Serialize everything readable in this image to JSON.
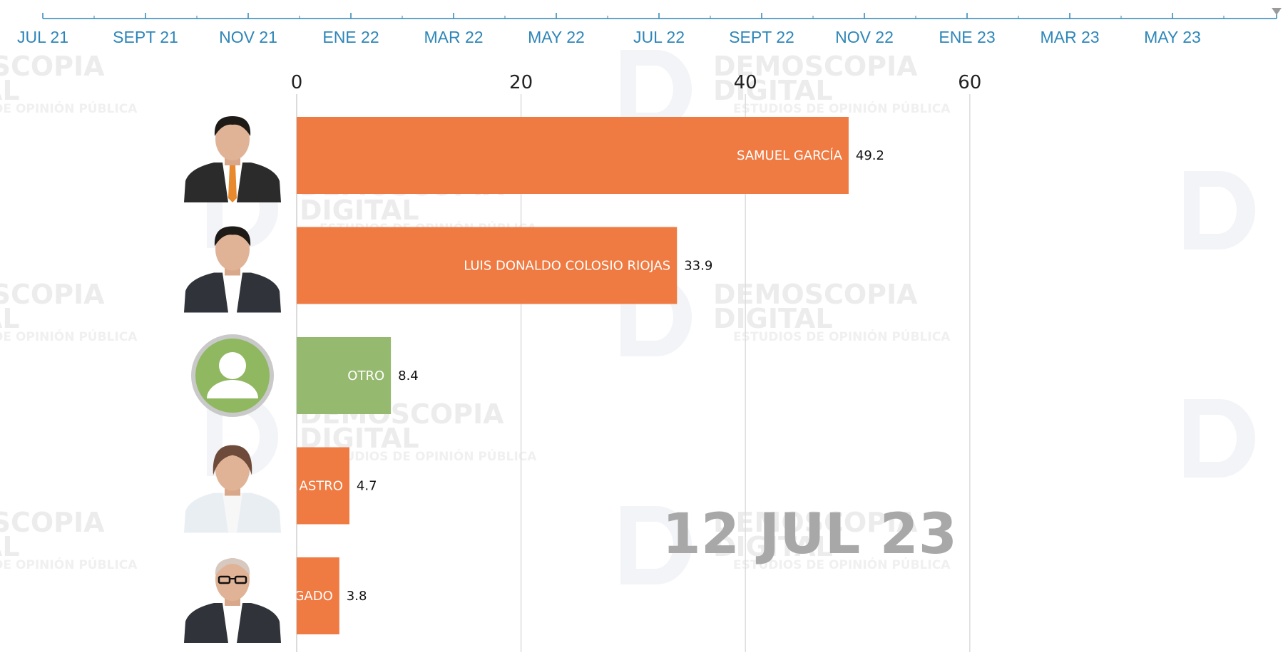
{
  "timeline": {
    "labels": [
      "JUL 21",
      "SEPT 21",
      "NOV 21",
      "ENE 22",
      "MAR 22",
      "MAY 22",
      "JUL 22",
      "SEPT 22",
      "NOV 22",
      "ENE 23",
      "MAR 23",
      "MAY 23"
    ],
    "color": "#2e86b8"
  },
  "watermark": {
    "line1": "DEMOSCOPIA",
    "line2": "DIGITAL",
    "line3": "ESTUDIOS DE OPINIÓN PÚBLICA"
  },
  "current_date": "12 JUL 23",
  "colors": {
    "orange": "#ef7a42",
    "green": "#95b96e",
    "gridline": "#dddddd",
    "date": "#a8a8a8"
  },
  "chart_data": {
    "type": "bar",
    "orientation": "horizontal",
    "xlim": [
      0,
      80
    ],
    "x_ticks": [
      0,
      20,
      40,
      60
    ],
    "grid": true,
    "categories": [
      "SAMUEL GARCÍA",
      "LUIS DONALDO COLOSIO RIOJAS",
      "OTRO",
      "ASTRO",
      "GADO"
    ],
    "values": [
      49.2,
      33.9,
      8.4,
      4.7,
      3.8
    ],
    "value_labels": [
      "49.2",
      "33.9",
      "8.4",
      "4.7",
      "3.8"
    ],
    "bar_colors": [
      "#ef7a42",
      "#ef7a42",
      "#95b96e",
      "#ef7a42",
      "#ef7a42"
    ],
    "icons": [
      "man-portrait-icon",
      "man-portrait-icon",
      "generic-person-icon",
      "woman-portrait-icon",
      "man-glasses-portrait-icon"
    ]
  }
}
